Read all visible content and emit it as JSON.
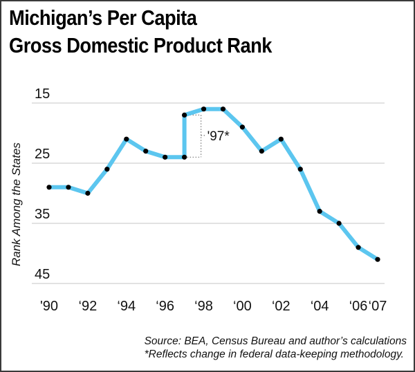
{
  "header": {
    "title_line1": "Michigan’s Per Capita",
    "title_line2": "Gross Domestic Product Rank"
  },
  "footer": {
    "source": "Source: BEA, Census Bureau and author’s calculations",
    "note": "*Reflects change in federal data-keeping methodology."
  },
  "colors": {
    "line": "#5cc6ef",
    "marker": "#000000",
    "grid": "#d8d8d8",
    "border": "#3a3a3a"
  },
  "chart_data": {
    "type": "line",
    "title": "Michigan’s Per Capita Gross Domestic Product Rank",
    "xlabel": "",
    "ylabel": "Rank Among the States",
    "y_inverted": false,
    "ylim": [
      15,
      45
    ],
    "yticks": [
      15,
      25,
      35,
      45
    ],
    "grid": "horizontal",
    "x_tick_labels": [
      {
        "x": 1990,
        "label": "'90"
      },
      {
        "x": 1992,
        "label": "‘92"
      },
      {
        "x": 1994,
        "label": "‘94"
      },
      {
        "x": 1996,
        "label": "‘96"
      },
      {
        "x": 1998,
        "label": "‘98"
      },
      {
        "x": 2000,
        "label": "‘00"
      },
      {
        "x": 2002,
        "label": "‘02"
      },
      {
        "x": 2004,
        "label": "‘04"
      },
      {
        "x": 2006,
        "label": "‘06"
      },
      {
        "x": 2007,
        "label": "‘07"
      }
    ],
    "series": [
      {
        "name": "Michigan per capita GDP rank",
        "points": [
          {
            "x": 1990,
            "y": 29
          },
          {
            "x": 1991,
            "y": 29
          },
          {
            "x": 1992,
            "y": 30
          },
          {
            "x": 1993,
            "y": 26
          },
          {
            "x": 1994,
            "y": 21
          },
          {
            "x": 1995,
            "y": 23
          },
          {
            "x": 1996,
            "y": 24
          },
          {
            "x": 1997,
            "y": 24
          },
          {
            "x": 1997,
            "y": 17,
            "note": "'97*"
          },
          {
            "x": 1998,
            "y": 16
          },
          {
            "x": 1999,
            "y": 16
          },
          {
            "x": 2000,
            "y": 19
          },
          {
            "x": 2001,
            "y": 23
          },
          {
            "x": 2002,
            "y": 21
          },
          {
            "x": 2003,
            "y": 26
          },
          {
            "x": 2004,
            "y": 33
          },
          {
            "x": 2005,
            "y": 35
          },
          {
            "x": 2006,
            "y": 39
          },
          {
            "x": 2007,
            "y": 41
          }
        ]
      }
    ],
    "annotations": [
      {
        "text": "'97*",
        "x": 1997,
        "y_range": [
          17,
          24
        ],
        "meaning": "methodology change"
      }
    ]
  }
}
